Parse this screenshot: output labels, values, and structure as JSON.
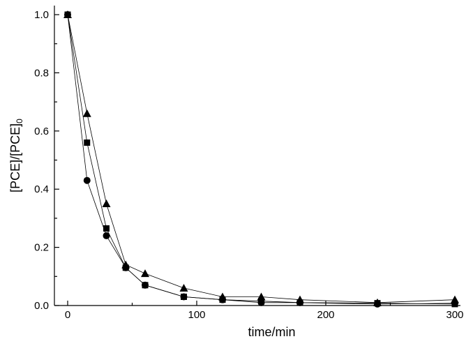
{
  "chart_data": {
    "type": "line",
    "title": "",
    "xlabel": "time/min",
    "ylabel": "[PCE]/[PCE]",
    "ylabel_subscript": "0",
    "xlim": [
      -5,
      305
    ],
    "ylim": [
      0,
      1.04
    ],
    "x_ticks": [
      0,
      100,
      200,
      300
    ],
    "y_ticks": [
      "0.0",
      "0.2",
      "0.4",
      "0.6",
      "0.8",
      "1.0"
    ],
    "grid": false,
    "legend": "none",
    "series": [
      {
        "marker": "square",
        "x": [
          0,
          15,
          30,
          45,
          60,
          90,
          120,
          150,
          180,
          240,
          300
        ],
        "y": [
          1.0,
          0.56,
          0.265,
          0.13,
          0.07,
          0.03,
          0.02,
          0.015,
          0.01,
          0.008,
          0.005
        ]
      },
      {
        "marker": "circle",
        "x": [
          0,
          15,
          30,
          45,
          60,
          90,
          120,
          150,
          180,
          240,
          300
        ],
        "y": [
          1.0,
          0.43,
          0.24,
          0.13,
          0.07,
          0.03,
          0.02,
          0.01,
          0.01,
          0.005,
          0.008
        ]
      },
      {
        "marker": "triangle",
        "x": [
          0,
          15,
          30,
          45,
          60,
          90,
          120,
          150,
          180,
          240,
          300
        ],
        "y": [
          1.0,
          0.66,
          0.35,
          0.14,
          0.11,
          0.06,
          0.03,
          0.03,
          0.02,
          0.01,
          0.02
        ]
      }
    ]
  }
}
